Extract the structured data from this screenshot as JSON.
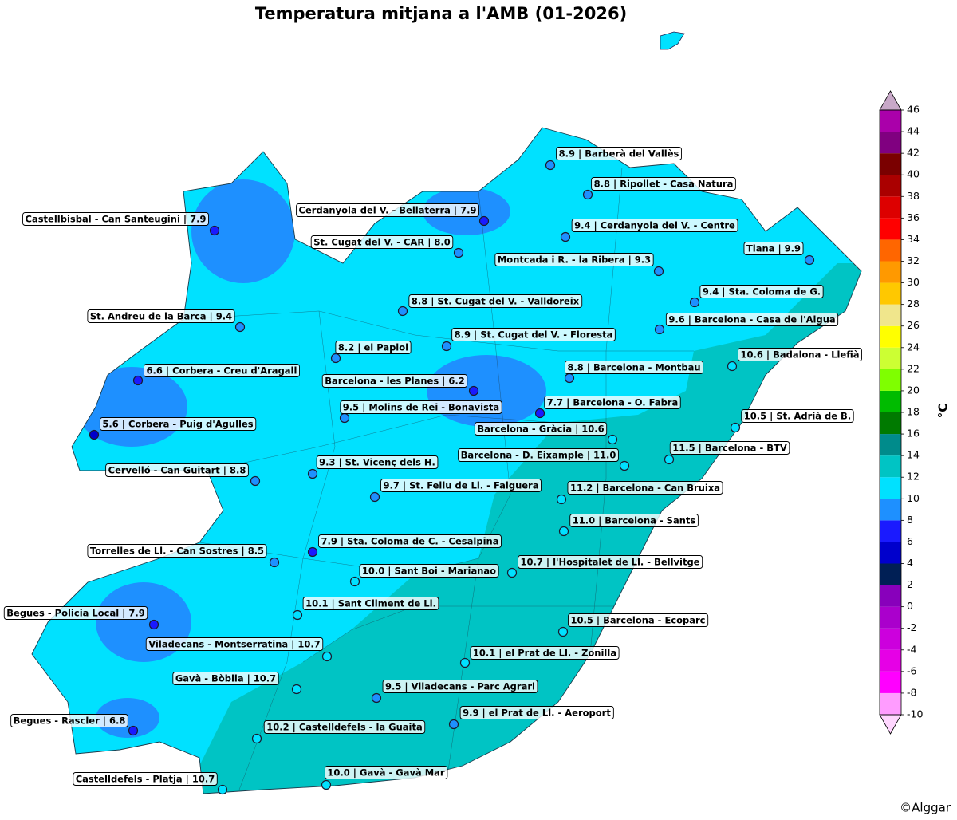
{
  "title": "Temperatura mitjana a l'AMB (01-2026)",
  "colorbar": {
    "label": "°C",
    "ticks": [
      -10,
      -8,
      -6,
      -4,
      -2,
      0,
      2,
      4,
      6,
      8,
      10,
      12,
      14,
      16,
      18,
      20,
      22,
      24,
      26,
      28,
      30,
      32,
      34,
      36,
      38,
      40,
      42,
      44,
      46
    ],
    "colors": [
      "#ff9cff",
      "#ff00ff",
      "#e600e6",
      "#cc00dd",
      "#aa00cc",
      "#8800bb",
      "#001f55",
      "#0000cc",
      "#1a1aff",
      "#1e90ff",
      "#00e1ff",
      "#00c4c4",
      "#008b8b",
      "#007a00",
      "#00bb00",
      "#7fff00",
      "#ccff33",
      "#ffff00",
      "#f0e68c",
      "#ffc800",
      "#ff9900",
      "#ff6600",
      "#ff0000",
      "#dd0000",
      "#aa0000",
      "#7a0000",
      "#800080",
      "#aa00aa"
    ],
    "under_color": "#ffd6ff",
    "over_color": "#c8a8c8"
  },
  "stations": [
    {
      "label": "8.9 | Barberà del Vallès",
      "value": 8.9
    },
    {
      "label": "8.8 | Ripollet - Casa Natura",
      "value": 8.8
    },
    {
      "label": "Cerdanyola del V. - Bellaterra | 7.9",
      "value": 7.9
    },
    {
      "label": "9.4 | Cerdanyola del V. - Centre",
      "value": 9.4
    },
    {
      "label": "Castellbisbal - Can Santeugini | 7.9",
      "value": 7.9
    },
    {
      "label": "St. Cugat del V. - CAR | 8.0",
      "value": 8.0
    },
    {
      "label": "Tiana | 9.9",
      "value": 9.9
    },
    {
      "label": "Montcada i R. - la Ribera | 9.3",
      "value": 9.3
    },
    {
      "label": "9.4 | Sta. Coloma de G.",
      "value": 9.4
    },
    {
      "label": "8.8 | St. Cugat del V. - Valldoreix",
      "value": 8.8
    },
    {
      "label": "St. Andreu de la Barca | 9.4",
      "value": 9.4
    },
    {
      "label": "9.6 | Barcelona - Casa de l'Aigua",
      "value": 9.6
    },
    {
      "label": "8.9 | St. Cugat del V. - Floresta",
      "value": 8.9
    },
    {
      "label": "8.2 | el Papiol",
      "value": 8.2
    },
    {
      "label": "10.6 | Badalona - Llefià",
      "value": 10.6
    },
    {
      "label": "6.6 | Corbera - Creu d'Aragall",
      "value": 6.6
    },
    {
      "label": "8.8 | Barcelona - Montbau",
      "value": 8.8
    },
    {
      "label": "Barcelona - les Planes | 6.2",
      "value": 6.2
    },
    {
      "label": "9.5 | Molins de Rei - Bonavista",
      "value": 9.5
    },
    {
      "label": "7.7 | Barcelona - O. Fabra",
      "value": 7.7
    },
    {
      "label": "10.5 | St. Adrià de B.",
      "value": 10.5
    },
    {
      "label": "5.6 | Corbera - Puig d'Agulles",
      "value": 5.6
    },
    {
      "label": "Barcelona - Gràcia | 10.6",
      "value": 10.6
    },
    {
      "label": "11.5 | Barcelona - BTV",
      "value": 11.5
    },
    {
      "label": "Barcelona - D. Eixample | 11.0",
      "value": 11.0
    },
    {
      "label": "9.3 | St. Vicenç dels H.",
      "value": 9.3
    },
    {
      "label": "Cervelló - Can Guitart | 8.8",
      "value": 8.8
    },
    {
      "label": "9.7 | St. Feliu de Ll. - Falguera",
      "value": 9.7
    },
    {
      "label": "11.2 | Barcelona - Can Bruixa",
      "value": 11.2
    },
    {
      "label": "11.0 | Barcelona - Sants",
      "value": 11.0
    },
    {
      "label": "7.9 | Sta. Coloma de C. - Cesalpina",
      "value": 7.9
    },
    {
      "label": "Torrelles de Ll. - Can Sostres | 8.5",
      "value": 8.5
    },
    {
      "label": "10.7 | l'Hospitalet de Ll. - Bellvitge",
      "value": 10.7
    },
    {
      "label": "10.0 | Sant Boi - Marianao",
      "value": 10.0
    },
    {
      "label": "10.1 | Sant Climent de Ll.",
      "value": 10.1
    },
    {
      "label": "Begues - Policia Local | 7.9",
      "value": 7.9
    },
    {
      "label": "10.5 | Barcelona - Ecoparc",
      "value": 10.5
    },
    {
      "label": "Viladecans - Montserratina | 10.7",
      "value": 10.7
    },
    {
      "label": "10.1 | el Prat de Ll. - Zonilla",
      "value": 10.1
    },
    {
      "label": "Gavà - Bòbila | 10.7",
      "value": 10.7
    },
    {
      "label": "9.5 | Viladecans - Parc Agrari",
      "value": 9.5
    },
    {
      "label": "9.9 | el Prat de Ll. - Aeroport",
      "value": 9.9
    },
    {
      "label": "Begues - Rascler | 6.8",
      "value": 6.8
    },
    {
      "label": "10.2 | Castelldefels - la Guaita",
      "value": 10.2
    },
    {
      "label": "10.0 | Gavà - Gavà Mar",
      "value": 10.0
    },
    {
      "label": "Castelldefels - Platja | 10.7",
      "value": 10.7
    }
  ],
  "credit": "©Alggar"
}
